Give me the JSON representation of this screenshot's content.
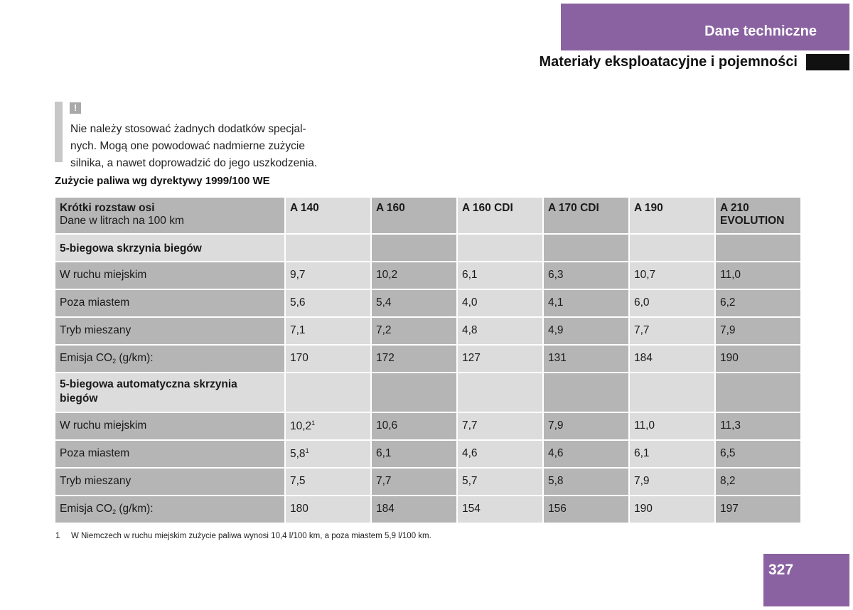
{
  "header": {
    "chapter": "Dane techniczne",
    "section": "Materiały eksploatacyjne i pojemności"
  },
  "warning": {
    "icon": "!",
    "lines": [
      "Nie należy stosować żadnych dodatków specjal-",
      "nych. Mogą one powodować nadmierne zużycie",
      "silnika, a nawet doprowadzić do jego uszkodzenia."
    ]
  },
  "table": {
    "caption": "Zużycie paliwa wg dyrektywy 1999/100 WE",
    "header": {
      "title": "Krótki rozstaw osi",
      "subtitle": "Dane w litrach na 100 km",
      "models": [
        "A 140",
        "A 160",
        "A 160 CDI",
        "A 170 CDI",
        "A 190",
        "A 210",
        "EVOLUTION"
      ]
    },
    "group1": {
      "title": "5-biegowa skrzynia biegów",
      "city": {
        "label": "W ruchu miejskim",
        "values": [
          "9,7",
          "10,2",
          "6,1",
          "6,3",
          "10,7",
          "11,0"
        ]
      },
      "highway": {
        "label": "Poza miastem",
        "values": [
          "5,6",
          "5,4",
          "4,0",
          "4,1",
          "6,0",
          "6,2"
        ]
      },
      "mixed": {
        "label": "Tryb mieszany",
        "values": [
          "7,1",
          "7,2",
          "4,8",
          "4,9",
          "7,7",
          "7,9"
        ]
      },
      "co2": {
        "label_pre": "Emisja CO",
        "label_sub": "2",
        "label_post": " (g/km):",
        "values": [
          "170",
          "172",
          "127",
          "131",
          "184",
          "190"
        ]
      }
    },
    "group2": {
      "title_line1": "5-biegowa automatyczna skrzynia",
      "title_line2": "biegów",
      "city": {
        "label": "W ruchu miejskim",
        "values": [
          "10,2",
          "10,6",
          "7,7",
          "7,9",
          "11,0",
          "11,3"
        ],
        "first_mark": "1"
      },
      "highway": {
        "label": "Poza miastem",
        "values": [
          "5,8",
          "6,1",
          "4,6",
          "4,6",
          "6,1",
          "6,5"
        ],
        "first_mark": "1"
      },
      "mixed": {
        "label": "Tryb mieszany",
        "values": [
          "7,5",
          "7,7",
          "5,7",
          "5,8",
          "7,9",
          "8,2"
        ]
      },
      "co2": {
        "label_pre": "Emisja CO",
        "label_sub": "2",
        "label_post": " (g/km):",
        "values": [
          "180",
          "184",
          "154",
          "156",
          "190",
          "197"
        ]
      }
    }
  },
  "footnote": {
    "number": "1",
    "text": "W Niemczech w ruchu miejskim zużycie paliwa wynosi 10,4 l/100 km, a poza miastem 5,9 l/100 km."
  },
  "page_number": "327"
}
